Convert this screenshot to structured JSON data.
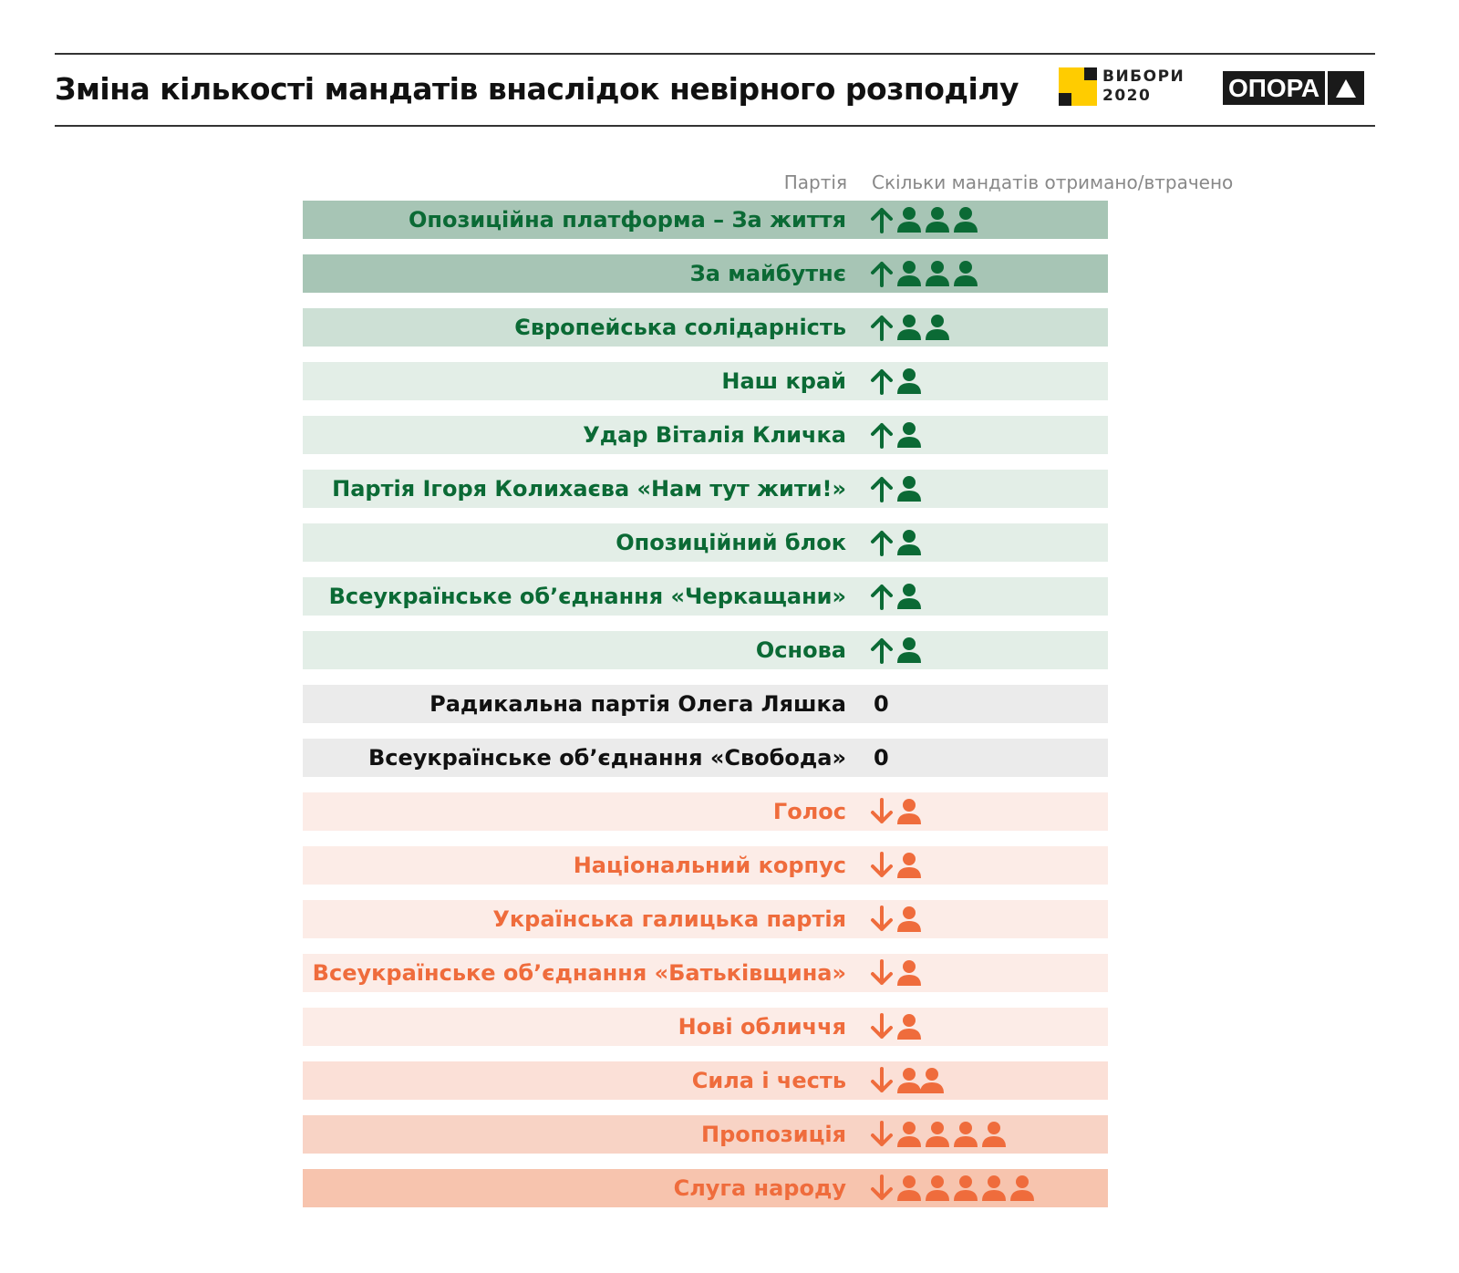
{
  "header": {
    "title": "Зміна кількості мандатів внаслідок невірного розподілу",
    "logo_vybory": [
      "ВИБОРИ",
      "2020"
    ],
    "logo_opora": "ОПОРА"
  },
  "colors": {
    "green_text": "#0b6a35",
    "orange_text": "#ef6c3c",
    "neutral_text": "#111111"
  },
  "chart_data": {
    "type": "table",
    "title": "Зміна кількості мандатів внаслідок невірного розподілу",
    "columns": [
      "Партія",
      "Скільки мандатів отримано/втрачено"
    ],
    "rows": [
      {
        "party": "Опозиційна платформа – За життя",
        "change": 3,
        "bg": "#a7c5b5"
      },
      {
        "party": "За майбутнє",
        "change": 3,
        "bg": "#a7c5b5"
      },
      {
        "party": "Європейська солідарність",
        "change": 2,
        "bg": "#cde0d5"
      },
      {
        "party": "Наш край",
        "change": 1,
        "bg": "#e3eee7"
      },
      {
        "party": "Удар Віталія Кличка",
        "change": 1,
        "bg": "#e3eee7"
      },
      {
        "party": "Партія Ігоря Колихаєва «Нам тут жити!»",
        "change": 1,
        "bg": "#e3eee7"
      },
      {
        "party": "Опозиційний блок",
        "change": 1,
        "bg": "#e3eee7"
      },
      {
        "party": "Всеукраїнське об’єднання «Черкащани»",
        "change": 1,
        "bg": "#e3eee7"
      },
      {
        "party": "Основа",
        "change": 1,
        "bg": "#e3eee7"
      },
      {
        "party": "Радикальна партія Олега Ляшка",
        "change": 0,
        "zero_label": "0",
        "bg": "#ebebeb"
      },
      {
        "party": "Всеукраїнське об’єднання «Свобода»",
        "change": 0,
        "zero_label": "0",
        "bg": "#ebebeb"
      },
      {
        "party": "Голос",
        "change": -1,
        "bg": "#fcece7"
      },
      {
        "party": "Національний корпус",
        "change": -1,
        "bg": "#fcece7"
      },
      {
        "party": "Українська галицька партія",
        "change": -1,
        "bg": "#fcece7"
      },
      {
        "party": "Всеукраїнське об’єднання «Батьківщина»",
        "change": -1,
        "bg": "#fcece7"
      },
      {
        "party": "Нові обличчя",
        "change": -1,
        "bg": "#fcece7"
      },
      {
        "party": "Сила і честь",
        "change": -2,
        "bg": "#fbe0d7"
      },
      {
        "party": "Пропозиція",
        "change": -4,
        "bg": "#f8d3c5"
      },
      {
        "party": "Слуга народу",
        "change": -5,
        "bg": "#f7c4ae"
      }
    ]
  }
}
